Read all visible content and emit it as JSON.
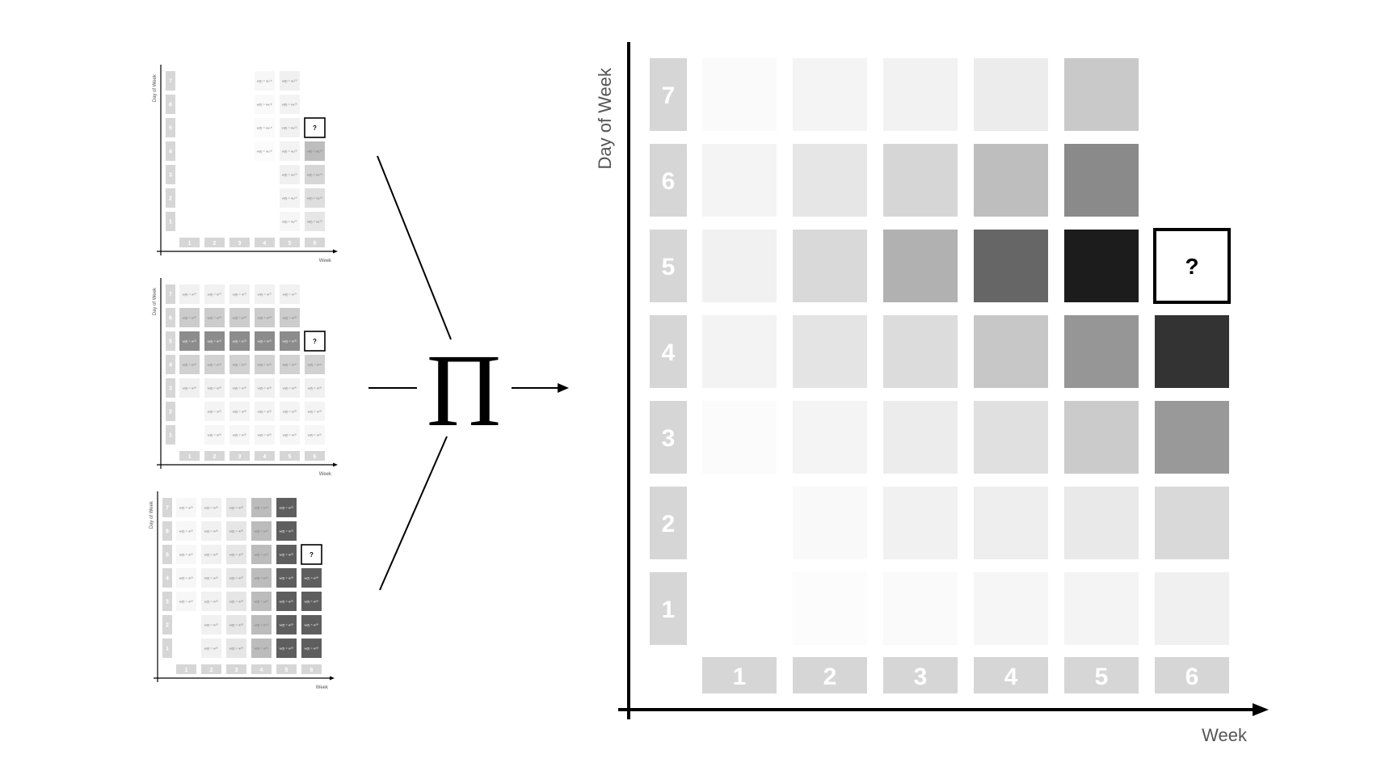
{
  "operator": {
    "symbol": "Π"
  },
  "main": {
    "ylabel": "Day of Week",
    "xlabel": "Week",
    "row_labels": [
      "1",
      "2",
      "3",
      "4",
      "5",
      "6",
      "7"
    ],
    "col_labels": [
      "1",
      "2",
      "3",
      "4",
      "5",
      "6"
    ],
    "unknown_label": "?",
    "unknown_cell": {
      "week": 6,
      "day": 5
    },
    "rows": [
      {
        "day": "7",
        "cells": [
          "#fafafa",
          "#f4f4f4",
          "#f2f2f2",
          "#ececec",
          "#c9c9c9",
          null
        ]
      },
      {
        "day": "6",
        "cells": [
          "#f4f4f4",
          "#e6e6e6",
          "#d6d6d6",
          "#bebebe",
          "#8a8a8a",
          null
        ]
      },
      {
        "day": "5",
        "cells": [
          "#f1f1f1",
          "#d9d9d9",
          "#b1b1b1",
          "#666666",
          "#1c1c1c",
          "unknown"
        ]
      },
      {
        "day": "4",
        "cells": [
          "#f3f3f3",
          "#e4e4e4",
          "#dcdcdc",
          "#c7c7c7",
          "#969696",
          "#333333"
        ]
      },
      {
        "day": "3",
        "cells": [
          "#fbfbfb",
          "#f4f4f4",
          "#ececec",
          "#e0e0e0",
          "#cbcbcb",
          "#999999"
        ]
      },
      {
        "day": "2",
        "cells": [
          null,
          "#f9f9f9",
          "#f1f1f1",
          "#eeeeee",
          "#e9e9e9",
          "#d9d9d9"
        ]
      },
      {
        "day": "1",
        "cells": [
          null,
          "#fcfcfc",
          "#fafafa",
          "#f6f6f6",
          "#f4f4f4",
          "#f0f0f0"
        ]
      }
    ]
  },
  "factors": [
    {
      "ylabel": "Day of Week",
      "xlabel": "Week",
      "rows": [
        {
          "day": "7",
          "cells": [
            null,
            null,
            null,
            {
              "c": "#f7f7f7",
              "t": "w(t) = w₇⁽⁴⁾"
            },
            {
              "c": "#f0f0f0",
              "t": "w(t) = w₇⁽⁵⁾"
            },
            null
          ]
        },
        {
          "day": "6",
          "cells": [
            null,
            null,
            null,
            {
              "c": "#f9f9f9",
              "t": "w(t) = w₆⁽⁴⁾"
            },
            {
              "c": "#f3f3f3",
              "t": "w(t) = w₆⁽⁵⁾"
            },
            null
          ]
        },
        {
          "day": "5",
          "cells": [
            null,
            null,
            null,
            {
              "c": "#fafafa",
              "t": "w(t) = w₅⁽⁴⁾"
            },
            {
              "c": "#f1f1f1",
              "t": "w(t) = w₅⁽⁵⁾"
            },
            "unknown"
          ]
        },
        {
          "day": "4",
          "cells": [
            null,
            null,
            null,
            {
              "c": "#fbfbfb",
              "t": "w(t) = w₄⁽⁴⁾"
            },
            {
              "c": "#f3f3f3",
              "t": "w(t) = w₄⁽⁵⁾"
            },
            {
              "c": "#bdbdbd",
              "t": "w(t) = w₄⁽⁶⁾"
            }
          ]
        },
        {
          "day": "3",
          "cells": [
            null,
            null,
            null,
            null,
            {
              "c": "#f0f0f0",
              "t": "w(t) = w₃⁽⁵⁾"
            },
            {
              "c": "#d6d6d6",
              "t": "w(t) = w₃⁽⁶⁾"
            }
          ]
        },
        {
          "day": "2",
          "cells": [
            null,
            null,
            null,
            null,
            {
              "c": "#f3f3f3",
              "t": "w(t) = w₂⁽⁵⁾"
            },
            {
              "c": "#dedede",
              "t": "w(t) = w₂⁽⁶⁾"
            }
          ]
        },
        {
          "day": "1",
          "cells": [
            null,
            null,
            null,
            null,
            {
              "c": "#f6f6f6",
              "t": "w(t) = w₁⁽⁵⁾"
            },
            {
              "c": "#e6e6e6",
              "t": "w(t) = w₁⁽⁶⁾"
            }
          ]
        }
      ]
    },
    {
      "ylabel": "Day of Week",
      "xlabel": "Week",
      "rows": [
        {
          "day": "7",
          "cells": [
            {
              "c": "#f1f1f1",
              "t": "w(t) = w⁽⁷⁾"
            },
            {
              "c": "#f1f1f1",
              "t": "w(t) = w⁽⁷⁾"
            },
            {
              "c": "#f1f1f1",
              "t": "w(t) = w⁽⁷⁾"
            },
            {
              "c": "#f1f1f1",
              "t": "w(t) = w⁽⁷⁾"
            },
            {
              "c": "#f1f1f1",
              "t": "w(t) = w⁽⁷⁾"
            },
            null
          ]
        },
        {
          "day": "6",
          "cells": [
            {
              "c": "#cccccc",
              "t": "w(t) = w⁽⁶⁾"
            },
            {
              "c": "#cccccc",
              "t": "w(t) = w⁽⁶⁾"
            },
            {
              "c": "#cccccc",
              "t": "w(t) = w⁽⁶⁾"
            },
            {
              "c": "#cccccc",
              "t": "w(t) = w⁽⁶⁾"
            },
            {
              "c": "#cccccc",
              "t": "w(t) = w⁽⁶⁾"
            },
            null
          ]
        },
        {
          "day": "5",
          "cells": [
            {
              "c": "#8c8c8c",
              "t": "w(t) = w⁽⁵⁾"
            },
            {
              "c": "#8c8c8c",
              "t": "w(t) = w⁽⁵⁾"
            },
            {
              "c": "#8c8c8c",
              "t": "w(t) = w⁽⁵⁾"
            },
            {
              "c": "#8c8c8c",
              "t": "w(t) = w⁽⁵⁾"
            },
            {
              "c": "#8c8c8c",
              "t": "w(t) = w⁽⁵⁾"
            },
            "unknown"
          ]
        },
        {
          "day": "4",
          "cells": [
            {
              "c": "#d1d1d1",
              "t": "w(t) = w⁽⁴⁾"
            },
            {
              "c": "#d1d1d1",
              "t": "w(t) = w⁽⁴⁾"
            },
            {
              "c": "#d1d1d1",
              "t": "w(t) = w⁽⁴⁾"
            },
            {
              "c": "#d1d1d1",
              "t": "w(t) = w⁽⁴⁾"
            },
            {
              "c": "#d1d1d1",
              "t": "w(t) = w⁽⁴⁾"
            },
            {
              "c": "#d1d1d1",
              "t": "w(t) = w⁽⁴⁾"
            }
          ]
        },
        {
          "day": "3",
          "cells": [
            {
              "c": "#f0f0f0",
              "t": "w(t) = w⁽³⁾"
            },
            {
              "c": "#f0f0f0",
              "t": "w(t) = w⁽³⁾"
            },
            {
              "c": "#f0f0f0",
              "t": "w(t) = w⁽³⁾"
            },
            {
              "c": "#f0f0f0",
              "t": "w(t) = w⁽³⁾"
            },
            {
              "c": "#f0f0f0",
              "t": "w(t) = w⁽³⁾"
            },
            {
              "c": "#f0f0f0",
              "t": "w(t) = w⁽³⁾"
            }
          ]
        },
        {
          "day": "2",
          "cells": [
            null,
            {
              "c": "#f4f4f4",
              "t": "w(t) = w⁽²⁾"
            },
            {
              "c": "#f4f4f4",
              "t": "w(t) = w⁽²⁾"
            },
            {
              "c": "#f4f4f4",
              "t": "w(t) = w⁽²⁾"
            },
            {
              "c": "#f4f4f4",
              "t": "w(t) = w⁽²⁾"
            },
            {
              "c": "#f4f4f4",
              "t": "w(t) = w⁽²⁾"
            }
          ]
        },
        {
          "day": "1",
          "cells": [
            null,
            {
              "c": "#f6f6f6",
              "t": "w(t) = w⁽¹⁾"
            },
            {
              "c": "#f6f6f6",
              "t": "w(t) = w⁽¹⁾"
            },
            {
              "c": "#f6f6f6",
              "t": "w(t) = w⁽¹⁾"
            },
            {
              "c": "#f6f6f6",
              "t": "w(t) = w⁽¹⁾"
            },
            {
              "c": "#f6f6f6",
              "t": "w(t) = w⁽¹⁾"
            }
          ]
        }
      ]
    },
    {
      "ylabel": "Day of Week",
      "xlabel": "Week",
      "rows": [
        {
          "day": "7",
          "cells": [
            {
              "c": "#f7f7f7",
              "t": "w(t) = w⁽¹⁾"
            },
            {
              "c": "#f1f1f1",
              "t": "w(t) = w⁽²⁾"
            },
            {
              "c": "#e6e6e6",
              "t": "w(t) = w⁽³⁾"
            },
            {
              "c": "#bcbcbc",
              "t": "w(t) = w⁽⁴⁾"
            },
            {
              "c": "#5e5e5e",
              "t": "w(t) = w⁽⁵⁾"
            },
            null
          ]
        },
        {
          "day": "6",
          "cells": [
            {
              "c": "#f7f7f7",
              "t": "w(t) = w⁽¹⁾"
            },
            {
              "c": "#f1f1f1",
              "t": "w(t) = w⁽²⁾"
            },
            {
              "c": "#e6e6e6",
              "t": "w(t) = w⁽³⁾"
            },
            {
              "c": "#bcbcbc",
              "t": "w(t) = w⁽⁴⁾"
            },
            {
              "c": "#5e5e5e",
              "t": "w(t) = w⁽⁵⁾"
            },
            null
          ]
        },
        {
          "day": "5",
          "cells": [
            {
              "c": "#f7f7f7",
              "t": "w(t) = w⁽¹⁾"
            },
            {
              "c": "#f1f1f1",
              "t": "w(t) = w⁽²⁾"
            },
            {
              "c": "#e6e6e6",
              "t": "w(t) = w⁽³⁾"
            },
            {
              "c": "#bcbcbc",
              "t": "w(t) = w⁽⁴⁾"
            },
            {
              "c": "#5e5e5e",
              "t": "w(t) = w⁽⁵⁾"
            },
            "unknown"
          ]
        },
        {
          "day": "4",
          "cells": [
            {
              "c": "#f7f7f7",
              "t": "w(t) = w⁽¹⁾"
            },
            {
              "c": "#f1f1f1",
              "t": "w(t) = w⁽²⁾"
            },
            {
              "c": "#e6e6e6",
              "t": "w(t) = w⁽³⁾"
            },
            {
              "c": "#bcbcbc",
              "t": "w(t) = w⁽⁴⁾"
            },
            {
              "c": "#5e5e5e",
              "t": "w(t) = w⁽⁵⁾"
            },
            {
              "c": "#5e5e5e",
              "t": "w(t) = w⁽⁶⁾"
            }
          ]
        },
        {
          "day": "3",
          "cells": [
            {
              "c": "#f7f7f7",
              "t": "w(t) = w⁽¹⁾"
            },
            {
              "c": "#f1f1f1",
              "t": "w(t) = w⁽²⁾"
            },
            {
              "c": "#e6e6e6",
              "t": "w(t) = w⁽³⁾"
            },
            {
              "c": "#bcbcbc",
              "t": "w(t) = w⁽⁴⁾"
            },
            {
              "c": "#5e5e5e",
              "t": "w(t) = w⁽⁵⁾"
            },
            {
              "c": "#5e5e5e",
              "t": "w(t) = w⁽⁶⁾"
            }
          ]
        },
        {
          "day": "2",
          "cells": [
            null,
            {
              "c": "#f1f1f1",
              "t": "w(t) = w⁽²⁾"
            },
            {
              "c": "#e6e6e6",
              "t": "w(t) = w⁽³⁾"
            },
            {
              "c": "#bcbcbc",
              "t": "w(t) = w⁽⁴⁾"
            },
            {
              "c": "#5e5e5e",
              "t": "w(t) = w⁽⁵⁾"
            },
            {
              "c": "#5e5e5e",
              "t": "w(t) = w⁽⁶⁾"
            }
          ]
        },
        {
          "day": "1",
          "cells": [
            null,
            {
              "c": "#f1f1f1",
              "t": "w(t) = w⁽²⁾"
            },
            {
              "c": "#e6e6e6",
              "t": "w(t) = w⁽³⁾"
            },
            {
              "c": "#bcbcbc",
              "t": "w(t) = w⁽⁴⁾"
            },
            {
              "c": "#5e5e5e",
              "t": "w(t) = w⁽⁵⁾"
            },
            {
              "c": "#5e5e5e",
              "t": "w(t) = w⁽⁶⁾"
            }
          ]
        }
      ]
    }
  ],
  "colors": {
    "label_box": "#d6d6d6",
    "axis": "#000000",
    "axis_label": "#555555"
  }
}
